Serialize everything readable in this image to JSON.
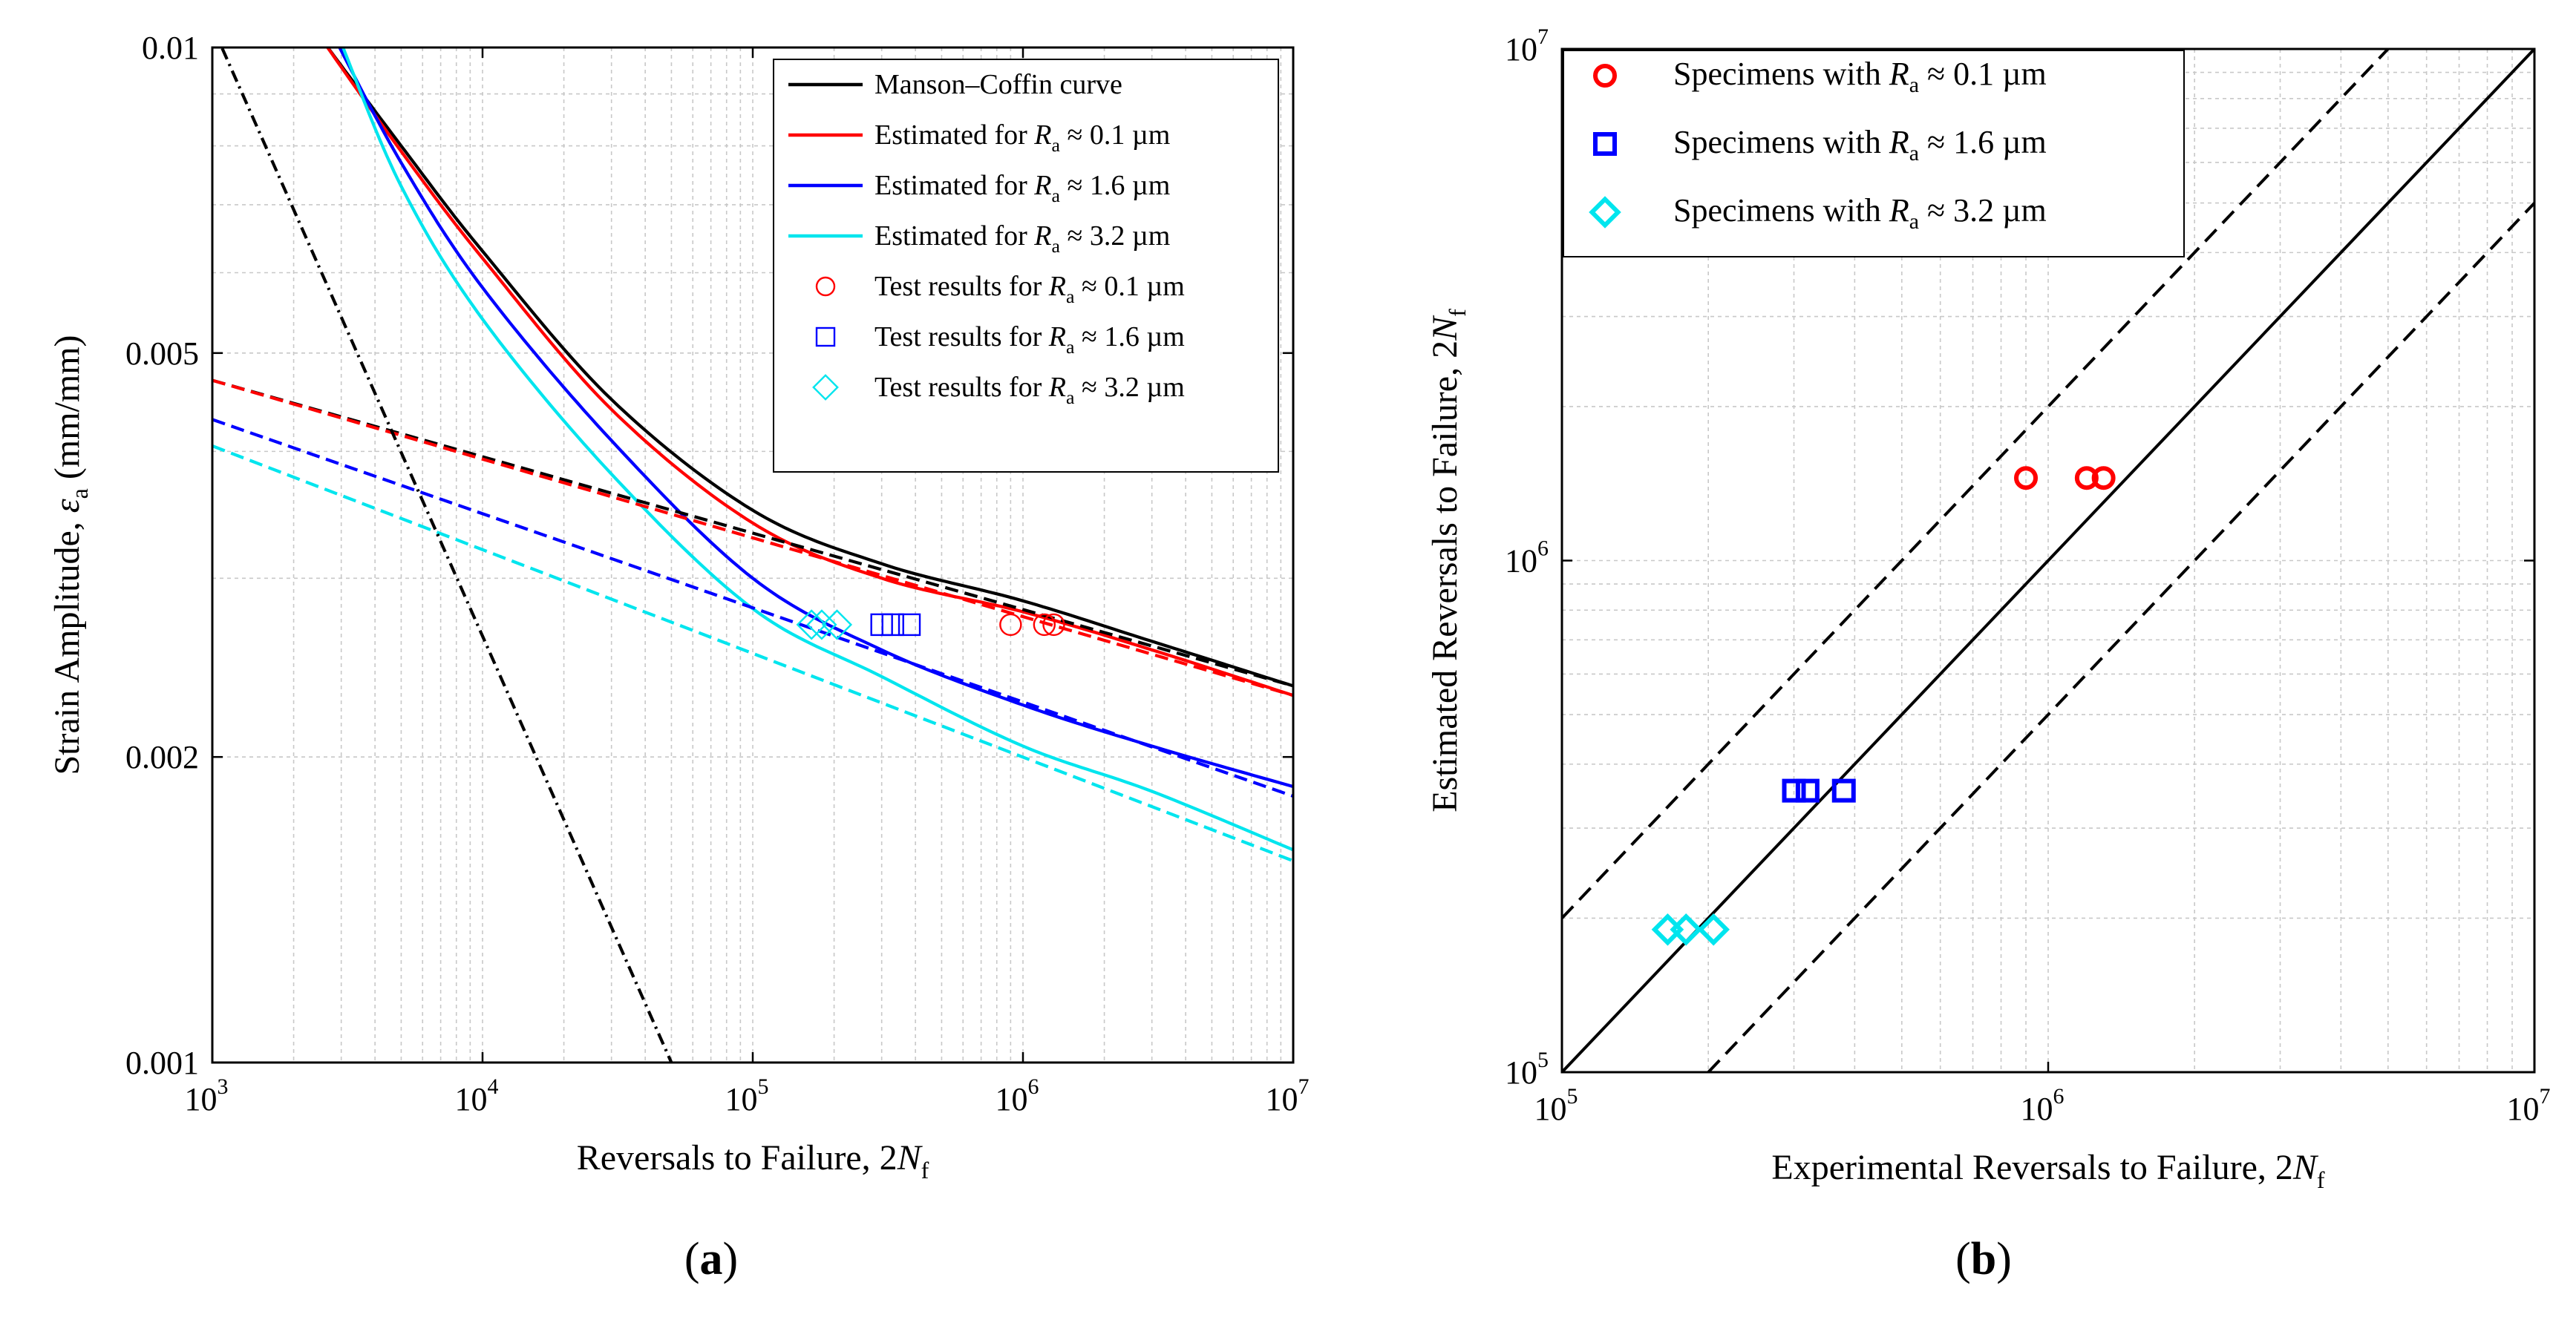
{
  "chart_data": [
    {
      "type": "line",
      "panel": "a",
      "caption": "(a)",
      "caption_letter": "a",
      "xlabel": "Reversals to Failure, 2",
      "xlabel_italic": "N",
      "xlabel_sub": "f",
      "ylabel": "Strain Amplitude, ",
      "ylabel_italic": "ε",
      "ylabel_sub": "a",
      "ylabel_tail": " (mm/mm)",
      "xscale": "log",
      "yscale": "log",
      "xlim": [
        1000,
        10000000
      ],
      "ylim": [
        0.001,
        0.01
      ],
      "x_ticks": [
        {
          "value": 1000,
          "base": "10",
          "exp": "3"
        },
        {
          "value": 10000,
          "base": "10",
          "exp": "4"
        },
        {
          "value": 100000,
          "base": "10",
          "exp": "5"
        },
        {
          "value": 1000000,
          "base": "10",
          "exp": "6"
        },
        {
          "value": 10000000,
          "base": "10",
          "exp": "7"
        }
      ],
      "y_ticks": [
        {
          "value": 0.001,
          "label": "0.001"
        },
        {
          "value": 0.002,
          "label": "0.002"
        },
        {
          "value": 0.005,
          "label": "0.005"
        },
        {
          "value": 0.01,
          "label": "0.01"
        }
      ],
      "grid": true,
      "legend": [
        {
          "label": "Manson–Coffin curve",
          "color": "#000000",
          "kind": "line"
        },
        {
          "label": "Estimated for ",
          "symbol": "R",
          "sub": "a",
          "tail": " ≈ 0.1 µm",
          "color": "#ff0000",
          "kind": "line"
        },
        {
          "label": "Estimated for ",
          "symbol": "R",
          "sub": "a",
          "tail": " ≈ 1.6 µm",
          "color": "#0000ff",
          "kind": "line"
        },
        {
          "label": "Estimated for ",
          "symbol": "R",
          "sub": "a",
          "tail": " ≈ 3.2 µm",
          "color": "#00e5ee",
          "kind": "line"
        },
        {
          "label": "Test results for ",
          "symbol": "R",
          "sub": "a",
          "tail": " ≈ 0.1 µm",
          "color": "#ff0000",
          "kind": "circle"
        },
        {
          "label": "Test results for ",
          "symbol": "R",
          "sub": "a",
          "tail": " ≈ 1.6 µm",
          "color": "#0000ff",
          "kind": "square"
        },
        {
          "label": "Test results for ",
          "symbol": "R",
          "sub": "a",
          "tail": " ≈ 3.2 µm",
          "color": "#00e5ee",
          "kind": "diamond"
        }
      ],
      "series": [
        {
          "name": "Manson–Coffin curve",
          "color": "#000000",
          "style": "solid",
          "x": [
            2600,
            5000,
            10000,
            30000,
            100000,
            300000,
            1000000,
            3000000,
            10000000
          ],
          "y": [
            0.0101,
            0.008,
            0.0063,
            0.0045,
            0.0035,
            0.0031,
            0.00285,
            0.0026,
            0.00235
          ]
        },
        {
          "name": "Estimated for Ra ≈ 0.1 µm",
          "color": "#ff0000",
          "style": "solid",
          "x": [
            2600,
            5000,
            10000,
            30000,
            100000,
            300000,
            1000000,
            3000000,
            10000000
          ],
          "y": [
            0.0101,
            0.0079,
            0.0062,
            0.0044,
            0.0034,
            0.003,
            0.00278,
            0.00255,
            0.0023
          ]
        },
        {
          "name": "Estimated for Ra ≈ 1.6 µm",
          "color": "#0000ff",
          "style": "solid",
          "x": [
            2900,
            5000,
            10000,
            30000,
            100000,
            300000,
            1000000,
            3000000,
            10000000
          ],
          "y": [
            0.0101,
            0.0077,
            0.0058,
            0.0041,
            0.003,
            0.00255,
            0.00225,
            0.00205,
            0.00187
          ]
        },
        {
          "name": "Estimated for Ra ≈ 3.2 µm",
          "color": "#00e5ee",
          "style": "solid",
          "x": [
            3000,
            5000,
            10000,
            30000,
            100000,
            300000,
            1000000,
            3000000,
            10000000
          ],
          "y": [
            0.0101,
            0.0073,
            0.0054,
            0.0038,
            0.0028,
            0.0024,
            0.00205,
            0.00185,
            0.00162
          ]
        },
        {
          "name": "Elastic line (Manson–Coffin)",
          "color": "#000000",
          "style": "dashed",
          "x": [
            1000,
            10000000
          ],
          "y": [
            0.0047,
            0.00235
          ]
        },
        {
          "name": "Elastic line (Ra ≈ 0.1 µm)",
          "color": "#ff0000",
          "style": "dashed",
          "x": [
            1000,
            10000000
          ],
          "y": [
            0.0047,
            0.0023
          ]
        },
        {
          "name": "Elastic line (Ra ≈ 1.6 µm)",
          "color": "#0000ff",
          "style": "dashed",
          "x": [
            1000,
            10000000
          ],
          "y": [
            0.0043,
            0.00183
          ]
        },
        {
          "name": "Elastic line (Ra ≈ 3.2 µm)",
          "color": "#00e5ee",
          "style": "dashed",
          "x": [
            1000,
            10000000
          ],
          "y": [
            0.00405,
            0.00158
          ]
        },
        {
          "name": "Plastic line",
          "color": "#000000",
          "style": "dashdot",
          "x": [
            1000,
            50000
          ],
          "y": [
            0.0105,
            0.001
          ]
        },
        {
          "name": "Test results for Ra ≈ 0.1 µm",
          "color": "#ff0000",
          "style": "markers",
          "marker": "circle",
          "x": [
            900000,
            1200000,
            1300000
          ],
          "y": [
            0.0027,
            0.0027,
            0.0027
          ]
        },
        {
          "name": "Test results for Ra ≈ 1.6 µm",
          "color": "#0000ff",
          "style": "markers",
          "marker": "square",
          "x": [
            300000,
            330000,
            380000
          ],
          "y": [
            0.0027,
            0.0027,
            0.0027
          ]
        },
        {
          "name": "Test results for Ra ≈ 3.2 µm",
          "color": "#00e5ee",
          "style": "markers",
          "marker": "diamond",
          "x": [
            165000,
            180000,
            205000
          ],
          "y": [
            0.0027,
            0.0027,
            0.0027
          ]
        }
      ]
    },
    {
      "type": "scatter",
      "panel": "b",
      "caption": "(b)",
      "caption_letter": "b",
      "xlabel": "Experimental Reversals to Failure, 2",
      "xlabel_italic": "N",
      "xlabel_sub": "f",
      "ylabel": "Estimated Reversals to Failure, 2",
      "ylabel_italic": "N",
      "ylabel_sub": "f",
      "xscale": "log",
      "yscale": "log",
      "xlim": [
        100000,
        10000000
      ],
      "ylim": [
        100000,
        10000000
      ],
      "x_ticks": [
        {
          "value": 100000,
          "base": "10",
          "exp": "5"
        },
        {
          "value": 1000000,
          "base": "10",
          "exp": "6"
        },
        {
          "value": 10000000,
          "base": "10",
          "exp": "7"
        }
      ],
      "y_ticks": [
        {
          "value": 100000,
          "base": "10",
          "exp": "5"
        },
        {
          "value": 1000000,
          "base": "10",
          "exp": "6"
        },
        {
          "value": 10000000,
          "base": "10",
          "exp": "7"
        }
      ],
      "grid": true,
      "legend": [
        {
          "label": "Specimens with ",
          "symbol": "R",
          "sub": "a",
          "tail": " ≈ 0.1 µm",
          "color": "#ff0000",
          "kind": "circle"
        },
        {
          "label": "Specimens with ",
          "symbol": "R",
          "sub": "a",
          "tail": " ≈ 1.6 µm",
          "color": "#0000ff",
          "kind": "square"
        },
        {
          "label": "Specimens with ",
          "symbol": "R",
          "sub": "a",
          "tail": " ≈ 3.2 µm",
          "color": "#00e5ee",
          "kind": "diamond"
        }
      ],
      "series": [
        {
          "name": "1:1 line",
          "color": "#000000",
          "style": "solid",
          "x": [
            100000,
            10000000
          ],
          "y": [
            100000,
            10000000
          ]
        },
        {
          "name": "Factor-of-2 upper bound",
          "color": "#000000",
          "style": "dashed",
          "x": [
            100000,
            5000000
          ],
          "y": [
            200000,
            10000000
          ]
        },
        {
          "name": "Factor-of-2 lower bound",
          "color": "#000000",
          "style": "dashed",
          "x": [
            200000,
            10000000
          ],
          "y": [
            100000,
            5000000
          ]
        },
        {
          "name": "Specimens with Ra ≈ 0.1 µm",
          "color": "#ff0000",
          "style": "markers",
          "marker": "circle",
          "x": [
            900000,
            1200000,
            1300000
          ],
          "y": [
            1450000,
            1450000,
            1450000
          ]
        },
        {
          "name": "Specimens with Ra ≈ 1.6 µm",
          "color": "#0000ff",
          "style": "markers",
          "marker": "square",
          "x": [
            300000,
            320000,
            380000
          ],
          "y": [
            355000,
            355000,
            355000
          ]
        },
        {
          "name": "Specimens with Ra ≈ 3.2 µm",
          "color": "#00e5ee",
          "style": "markers",
          "marker": "diamond",
          "x": [
            165000,
            180000,
            205000
          ],
          "y": [
            190000,
            190000,
            190000
          ]
        }
      ]
    }
  ]
}
